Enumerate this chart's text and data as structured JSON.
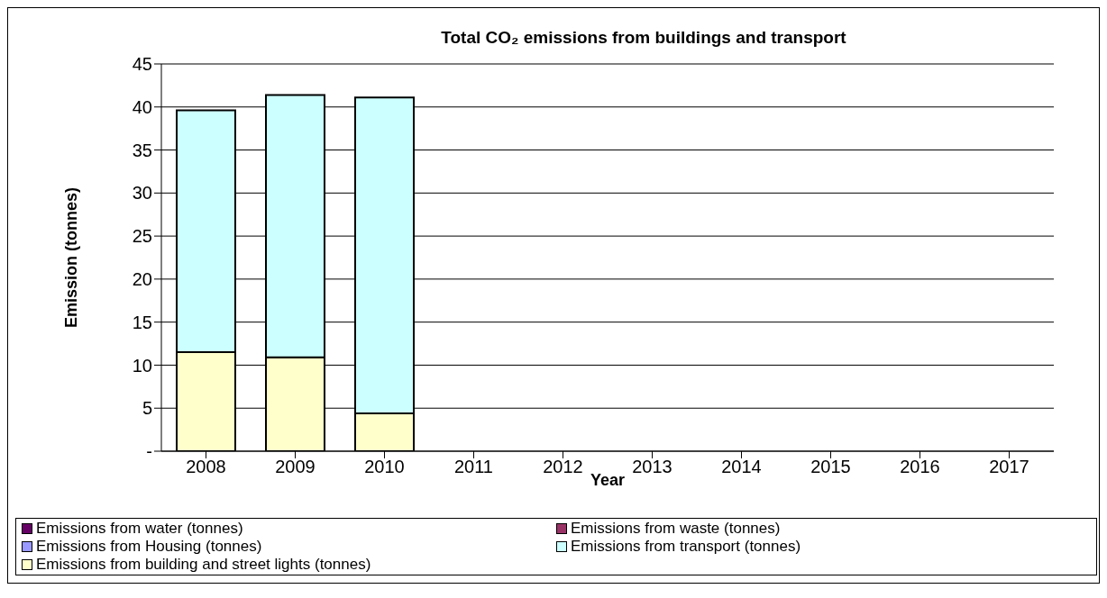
{
  "chart_data": {
    "type": "bar",
    "title": "Total CO₂ emissions from buildings and transport",
    "xlabel": "Year",
    "ylabel": "Emission (tonnes)",
    "categories": [
      "2008",
      "2009",
      "2010",
      "2011",
      "2012",
      "2013",
      "2014",
      "2015",
      "2016",
      "2017"
    ],
    "stacked": true,
    "series": [
      {
        "name": "Emissions from building and street lights (tonnes)",
        "color": "#ffffcc",
        "values": [
          11.5,
          10.9,
          4.4,
          null,
          null,
          null,
          null,
          null,
          null,
          null
        ]
      },
      {
        "name": "Emissions from transport (tonnes)",
        "color": "#ccffff",
        "values": [
          28.1,
          30.5,
          36.7,
          null,
          null,
          null,
          null,
          null,
          null,
          null
        ]
      },
      {
        "name": "Emissions from Housing (tonnes)",
        "color": "#9999ff",
        "values": [
          null,
          null,
          null,
          null,
          null,
          null,
          null,
          null,
          null,
          null
        ]
      },
      {
        "name": "Emissions from waste (tonnes)",
        "color": "#993366",
        "values": [
          null,
          null,
          null,
          null,
          null,
          null,
          null,
          null,
          null,
          null
        ]
      },
      {
        "name": "Emissions from water (tonnes)",
        "color": "#660066",
        "values": [
          null,
          null,
          null,
          null,
          null,
          null,
          null,
          null,
          null,
          null
        ]
      }
    ],
    "ylim": [
      0,
      45
    ],
    "yticks": [
      {
        "value": 0,
        "label": "-"
      },
      5,
      10,
      15,
      20,
      25,
      30,
      35,
      40,
      45
    ],
    "grid": "y",
    "legend": "bottom"
  }
}
